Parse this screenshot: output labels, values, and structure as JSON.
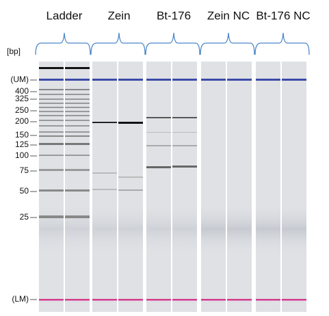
{
  "groups": [
    "Ladder",
    "Zein",
    "Bt-176",
    "Zein NC",
    "Bt-176 NC"
  ],
  "unit_label": "[bp]",
  "size_labels": [
    "(UM)",
    "400",
    "325",
    "250",
    "200",
    "150",
    "125",
    "100",
    "75",
    "50",
    "25",
    "(LM)"
  ]
}
